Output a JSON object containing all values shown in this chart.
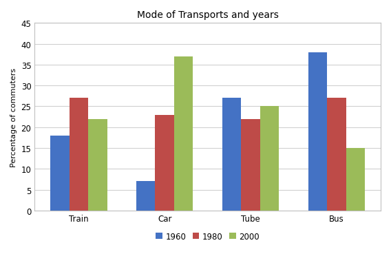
{
  "title": "Mode of Transports and years",
  "ylabel": "Percentage of commuters",
  "categories": [
    "Train",
    "Car",
    "Tube",
    "Bus"
  ],
  "series": {
    "1960": [
      18,
      7,
      27,
      38
    ],
    "1980": [
      27,
      23,
      22,
      27
    ],
    "2000": [
      22,
      37,
      25,
      15
    ]
  },
  "colors": {
    "1960": "#4472C4",
    "1980": "#BE4B48",
    "2000": "#9BBB59"
  },
  "ylim": [
    0,
    45
  ],
  "yticks": [
    0,
    5,
    10,
    15,
    20,
    25,
    30,
    35,
    40,
    45
  ],
  "bar_width": 0.22,
  "legend_labels": [
    "1960",
    "1980",
    "2000"
  ],
  "background_color": "#ffffff",
  "plot_bg_color": "#ffffff",
  "title_fontsize": 10,
  "axis_label_fontsize": 8,
  "tick_fontsize": 8.5,
  "legend_fontsize": 8.5
}
